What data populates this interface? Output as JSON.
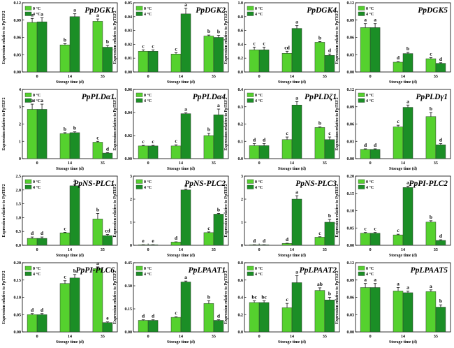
{
  "colors": {
    "c0": "#55d12e",
    "c4": "#1b8e26",
    "stroke": "#2e3a2e",
    "axis": "#000000"
  },
  "chart_data": [
    {
      "type": "bar",
      "title": "PpDGK1",
      "xlabel": "Storage time (d)",
      "ylabel": "Expression relative to PpTEF2",
      "categories": [
        "0",
        "14",
        "35"
      ],
      "ylim": [
        0,
        0.12
      ],
      "yticks": [
        0.0,
        0.03,
        0.06,
        0.09,
        0.12
      ],
      "ytick_labels": [
        "0.00",
        "0.03",
        "0.06",
        "0.09",
        "0.12"
      ],
      "series": [
        {
          "name": "0 °C",
          "values": [
            0.086,
            0.047,
            0.088
          ],
          "errors": [
            0.007,
            0.002,
            0.004
          ],
          "letters": [
            "a",
            "b",
            "a"
          ]
        },
        {
          "name": "4 °C",
          "values": [
            0.087,
            0.096,
            0.043
          ],
          "errors": [
            0.007,
            0.005,
            0.003
          ],
          "letters": [
            "a",
            "a",
            "b"
          ]
        }
      ]
    },
    {
      "type": "bar",
      "title": "PpDGK2",
      "xlabel": "Storage time (d)",
      "ylabel": "Expression relative to PpTEF2",
      "categories": [
        "0",
        "14",
        "35"
      ],
      "ylim": [
        0,
        0.05
      ],
      "yticks": [
        0.0,
        0.01,
        0.02,
        0.03,
        0.04,
        0.05
      ],
      "ytick_labels": [
        "0.00",
        "0.01",
        "0.02",
        "0.03",
        "0.04",
        "0.05"
      ],
      "series": [
        {
          "name": "0 °C",
          "values": [
            0.015,
            0.013,
            0.026
          ],
          "errors": [
            0.001,
            0.001,
            0.0007
          ],
          "letters": [
            "c",
            "c",
            "b"
          ]
        },
        {
          "name": "4 °C",
          "values": [
            0.015,
            0.042,
            0.025
          ],
          "errors": [
            0.001,
            0.004,
            0.0015
          ],
          "letters": [
            "c",
            "a",
            "b"
          ]
        }
      ]
    },
    {
      "type": "bar",
      "title": "PpDGK4",
      "xlabel": "Storage time (d)",
      "ylabel": "Expression relative to PpTEF2",
      "categories": [
        "0",
        "14",
        "35"
      ],
      "ylim": [
        0,
        1.0
      ],
      "yticks": [
        0.0,
        0.2,
        0.4,
        0.6,
        0.8,
        1.0
      ],
      "ytick_labels": [
        "0.0",
        "0.2",
        "0.4",
        "0.6",
        "0.8",
        "1.0"
      ],
      "series": [
        {
          "name": "0 °C",
          "values": [
            0.32,
            0.27,
            0.43
          ],
          "errors": [
            0.04,
            0.03,
            0.01
          ],
          "letters": [
            "c",
            "cd",
            "b"
          ]
        },
        {
          "name": "4 °C",
          "values": [
            0.32,
            0.63,
            0.24
          ],
          "errors": [
            0.04,
            0.04,
            0.02
          ],
          "letters": [
            "c",
            "a",
            "d"
          ]
        }
      ]
    },
    {
      "type": "bar",
      "title": "PpDGK5",
      "xlabel": "Storage time (d)",
      "ylabel": "Expression relative to PpTEF2",
      "categories": [
        "0",
        "14",
        "35"
      ],
      "ylim": [
        0,
        0.12
      ],
      "yticks": [
        0.0,
        0.03,
        0.06,
        0.09,
        0.12
      ],
      "ytick_labels": [
        "0.00",
        "0.03",
        "0.06",
        "0.09",
        "0.12"
      ],
      "series": [
        {
          "name": "0 °C",
          "values": [
            0.077,
            0.017,
            0.023
          ],
          "errors": [
            0.007,
            0.001,
            0.002
          ],
          "letters": [
            "a",
            "d",
            "c"
          ]
        },
        {
          "name": "4 °C",
          "values": [
            0.077,
            0.032,
            0.015
          ],
          "errors": [
            0.007,
            0.002,
            0.001
          ],
          "letters": [
            "a",
            "b",
            "d"
          ]
        }
      ]
    },
    {
      "type": "bar",
      "title": "PpPLDα1",
      "xlabel": "Storage time (d)",
      "ylabel": "Expression relative to PpTEF2",
      "categories": [
        "0",
        "14",
        "35"
      ],
      "ylim": [
        0,
        4
      ],
      "yticks": [
        0,
        1,
        2,
        3,
        4
      ],
      "ytick_labels": [
        "0",
        "1",
        "2",
        "3",
        "4"
      ],
      "series": [
        {
          "name": "0 °C",
          "values": [
            2.85,
            1.45,
            0.95
          ],
          "errors": [
            0.3,
            0.05,
            0.05
          ],
          "letters": [
            "a",
            "b",
            "c"
          ]
        },
        {
          "name": "4 °C",
          "values": [
            2.85,
            1.5,
            0.32
          ],
          "errors": [
            0.3,
            0.05,
            0.03
          ],
          "letters": [
            "a",
            "b",
            "d"
          ]
        }
      ]
    },
    {
      "type": "bar",
      "title": "PpPLDα4",
      "xlabel": "Storage time (d)",
      "ylabel": "Expression relative to PpTEF2",
      "categories": [
        "0",
        "14",
        "35"
      ],
      "ylim": [
        0,
        0.06
      ],
      "yticks": [
        0.0,
        0.02,
        0.04,
        0.06
      ],
      "ytick_labels": [
        "0.00",
        "0.02",
        "0.04",
        "0.06"
      ],
      "series": [
        {
          "name": "0 °C",
          "values": [
            0.011,
            0.011,
            0.02
          ],
          "errors": [
            0.0005,
            0.001,
            0.002
          ],
          "letters": [
            "c",
            "c",
            "b"
          ]
        },
        {
          "name": "4 °C",
          "values": [
            0.011,
            0.039,
            0.038
          ],
          "errors": [
            0.0005,
            0.0007,
            0.005
          ],
          "letters": [
            "c",
            "a",
            "a"
          ]
        }
      ]
    },
    {
      "type": "bar",
      "title": "PpPLDζ1",
      "xlabel": "Storage time (d)",
      "ylabel": "Expression relative to PpTEF2",
      "categories": [
        "0",
        "14",
        "35"
      ],
      "ylim": [
        0,
        0.4
      ],
      "yticks": [
        0.0,
        0.1,
        0.2,
        0.3,
        0.4
      ],
      "ytick_labels": [
        "0.0",
        "0.1",
        "0.2",
        "0.3",
        "0.4"
      ],
      "series": [
        {
          "name": "0 °C",
          "values": [
            0.075,
            0.11,
            0.18
          ],
          "errors": [
            0.012,
            0.015,
            0.003
          ],
          "letters": [
            "d",
            "c",
            "b"
          ]
        },
        {
          "name": "4 °C",
          "values": [
            0.075,
            0.31,
            0.11
          ],
          "errors": [
            0.012,
            0.02,
            0.015
          ],
          "letters": [
            "d",
            "a",
            "c"
          ]
        }
      ]
    },
    {
      "type": "bar",
      "title": "PpPLDγ1",
      "xlabel": "Storage time (d)",
      "ylabel": "Expression relative to PpTEF2",
      "categories": [
        "0",
        "14",
        "35"
      ],
      "ylim": [
        0,
        0.12
      ],
      "yticks": [
        0.0,
        0.03,
        0.06,
        0.09,
        0.12
      ],
      "ytick_labels": [
        "0.00",
        "0.03",
        "0.06",
        "0.09",
        "0.12"
      ],
      "series": [
        {
          "name": "0 °C",
          "values": [
            0.016,
            0.055,
            0.073
          ],
          "errors": [
            0.001,
            0.003,
            0.007
          ],
          "letters": [
            "d",
            "c",
            "b"
          ]
        },
        {
          "name": "4 °C",
          "values": [
            0.016,
            0.089,
            0.024
          ],
          "errors": [
            0.001,
            0.004,
            0.002
          ],
          "letters": [
            "d",
            "a",
            "d"
          ]
        }
      ]
    },
    {
      "type": "bar",
      "title": "PpNS-PLC1",
      "xlabel": "Storage time (d)",
      "ylabel": "Expression relative to PpTEF2",
      "categories": [
        "0",
        "14",
        "35"
      ],
      "ylim": [
        0,
        2.5
      ],
      "yticks": [
        0.0,
        0.5,
        1.0,
        1.5,
        2.0,
        2.5
      ],
      "ytick_labels": [
        "0.0",
        "0.5",
        "1.0",
        "1.5",
        "2.0",
        "2.5"
      ],
      "series": [
        {
          "name": "0 °C",
          "values": [
            0.25,
            0.45,
            0.95
          ],
          "errors": [
            0.05,
            0.02,
            0.2
          ],
          "letters": [
            "d",
            "c",
            "b"
          ]
        },
        {
          "name": "4 °C",
          "values": [
            0.25,
            2.15,
            0.35
          ],
          "errors": [
            0.05,
            0.06,
            0.04
          ],
          "letters": [
            "d",
            "a",
            "cd"
          ]
        }
      ]
    },
    {
      "type": "bar",
      "title": "PpNS-PLC2",
      "xlabel": "Storage time (d)",
      "ylabel": "Expression relative to PpTEF2",
      "categories": [
        "0",
        "14",
        "35"
      ],
      "ylim": [
        0,
        3
      ],
      "yticks": [
        0,
        1,
        2,
        3
      ],
      "ytick_labels": [
        "0",
        "1",
        "2",
        "3"
      ],
      "series": [
        {
          "name": "0 °C",
          "values": [
            0.02,
            0.14,
            0.55
          ],
          "errors": [
            0.005,
            0.01,
            0.03
          ],
          "letters": [
            "e",
            "d",
            "c"
          ]
        },
        {
          "name": "4 °C",
          "values": [
            0.02,
            2.4,
            1.35
          ],
          "errors": [
            0.005,
            0.03,
            0.03
          ],
          "letters": [
            "e",
            "a",
            "b"
          ]
        }
      ]
    },
    {
      "type": "bar",
      "title": "PpNS-PLC3",
      "xlabel": "Storage time (d)",
      "ylabel": "Expression relative to PpTEF2",
      "categories": [
        "0",
        "14",
        "35"
      ],
      "ylim": [
        0,
        3
      ],
      "yticks": [
        0,
        1,
        2,
        3
      ],
      "ytick_labels": [
        "0",
        "1",
        "2",
        "3"
      ],
      "series": [
        {
          "name": "0 °C",
          "values": [
            0.02,
            0.08,
            0.35
          ],
          "errors": [
            0.005,
            0.01,
            0.02
          ],
          "letters": [
            "d",
            "d",
            "c"
          ]
        },
        {
          "name": "4 °C",
          "values": [
            0.02,
            2.0,
            1.0
          ],
          "errors": [
            0.005,
            0.15,
            0.12
          ],
          "letters": [
            "d",
            "a",
            "b"
          ]
        }
      ]
    },
    {
      "type": "bar",
      "title": "PpPI-PLC2",
      "xlabel": "Storage time (d)",
      "ylabel": "Expression relative to PpTEF2",
      "categories": [
        "0",
        "14",
        "35"
      ],
      "ylim": [
        0,
        0.2
      ],
      "yticks": [
        0.0,
        0.05,
        0.1,
        0.15,
        0.2
      ],
      "ytick_labels": [
        "0.00",
        "0.05",
        "0.10",
        "0.15",
        "0.20"
      ],
      "series": [
        {
          "name": "0 °C",
          "values": [
            0.035,
            0.03,
            0.067
          ],
          "errors": [
            0.002,
            0.002,
            0.004
          ],
          "letters": [
            "c",
            "c",
            "b"
          ]
        },
        {
          "name": "4 °C",
          "values": [
            0.035,
            0.167,
            0.014
          ],
          "errors": [
            0.002,
            0.004,
            0.002
          ],
          "letters": [
            "c",
            "a",
            "d"
          ]
        }
      ]
    },
    {
      "type": "bar",
      "title": "PpPI-PLC6",
      "xlabel": "Storage time (d)",
      "ylabel": "Expression relative to PpTEF2",
      "categories": [
        "0",
        "14",
        "35"
      ],
      "ylim": [
        0,
        0.2
      ],
      "yticks": [
        0.0,
        0.05,
        0.1,
        0.15,
        0.2
      ],
      "ytick_labels": [
        "0.00",
        "0.05",
        "0.10",
        "0.15",
        "0.20"
      ],
      "series": [
        {
          "name": "0 °C",
          "values": [
            0.05,
            0.14,
            0.183
          ],
          "errors": [
            0.003,
            0.008,
            0.005
          ],
          "letters": [
            "d",
            "c",
            "a"
          ]
        },
        {
          "name": "4 °C",
          "values": [
            0.05,
            0.156,
            0.027
          ],
          "errors": [
            0.003,
            0.01,
            0.002
          ],
          "letters": [
            "d",
            "b",
            "e"
          ]
        }
      ]
    },
    {
      "type": "bar",
      "title": "PpLPAAT1",
      "xlabel": "Storage time (d)",
      "ylabel": "Expression relative to PpTEF2",
      "categories": [
        "0",
        "14",
        "35"
      ],
      "ylim": [
        0,
        0.45
      ],
      "yticks": [
        0.0,
        0.15,
        0.3,
        0.45
      ],
      "ytick_labels": [
        "0.00",
        "0.15",
        "0.30",
        "0.45"
      ],
      "series": [
        {
          "name": "0 °C",
          "values": [
            0.075,
            0.095,
            0.185
          ],
          "errors": [
            0.004,
            0.004,
            0.018
          ],
          "letters": [
            "d",
            "c",
            "b"
          ]
        },
        {
          "name": "4 °C",
          "values": [
            0.075,
            0.325,
            0.075
          ],
          "errors": [
            0.004,
            0.006,
            0.004
          ],
          "letters": [
            "d",
            "a",
            "d"
          ]
        }
      ]
    },
    {
      "type": "bar",
      "title": "PpLPAAT2",
      "xlabel": "Storage time (d)",
      "ylabel": "Expression relative to PpTEF2",
      "categories": [
        "0",
        "14",
        "35"
      ],
      "ylim": [
        0,
        0.8
      ],
      "yticks": [
        0.0,
        0.2,
        0.4,
        0.6,
        0.8
      ],
      "ytick_labels": [
        "0.0",
        "0.2",
        "0.4",
        "0.6",
        "0.8"
      ],
      "series": [
        {
          "name": "0 °C",
          "values": [
            0.34,
            0.28,
            0.48
          ],
          "errors": [
            0.02,
            0.05,
            0.03
          ],
          "letters": [
            "bc",
            "c",
            "ab"
          ]
        },
        {
          "name": "4 °C",
          "values": [
            0.34,
            0.57,
            0.37
          ],
          "errors": [
            0.02,
            0.08,
            0.03
          ],
          "letters": [
            "bc",
            "a",
            "b"
          ]
        }
      ]
    },
    {
      "type": "bar",
      "title": "PpLPAAT5",
      "xlabel": "Storage time (d)",
      "ylabel": "Expression relative to PpTEF2",
      "categories": [
        "0",
        "14",
        "35"
      ],
      "ylim": [
        0,
        0.12
      ],
      "yticks": [
        0.0,
        0.03,
        0.06,
        0.09,
        0.12
      ],
      "ytick_labels": [
        "0.00",
        "0.03",
        "0.06",
        "0.09",
        "0.12"
      ],
      "series": [
        {
          "name": "0 °C",
          "values": [
            0.077,
            0.071,
            0.07
          ],
          "errors": [
            0.007,
            0.006,
            0.003
          ],
          "letters": [
            "a",
            "a",
            "a"
          ]
        },
        {
          "name": "4 °C",
          "values": [
            0.077,
            0.068,
            0.043
          ],
          "errors": [
            0.007,
            0.003,
            0.004
          ],
          "letters": [
            "a",
            "a",
            "b"
          ]
        }
      ]
    }
  ]
}
